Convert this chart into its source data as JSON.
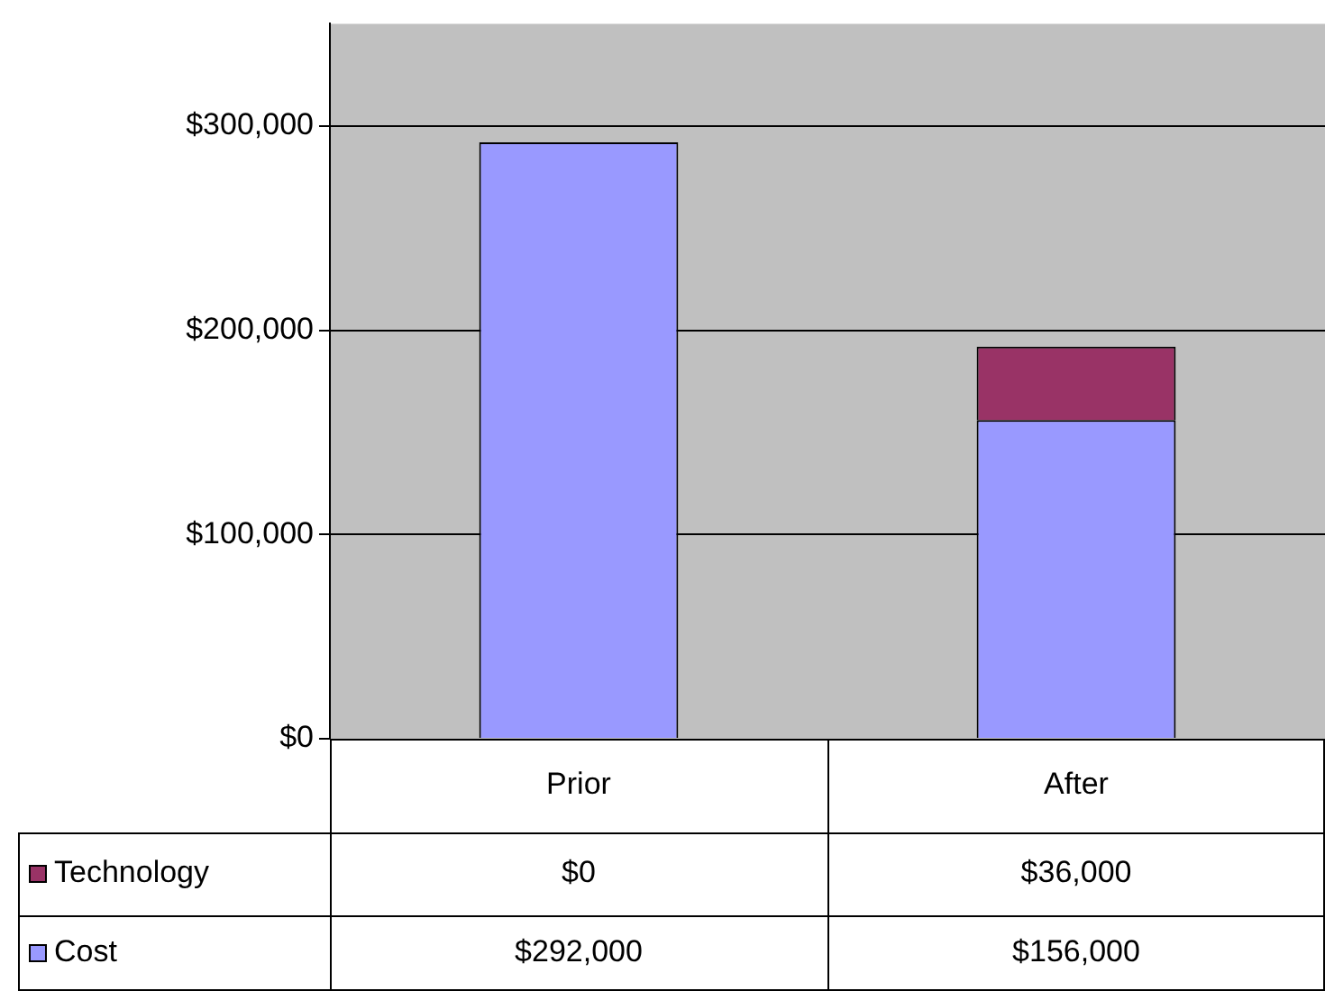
{
  "chart_data": {
    "type": "bar",
    "stacked": true,
    "categories": [
      "Prior",
      "After"
    ],
    "series": [
      {
        "name": "Cost",
        "color": "#9999ff",
        "values": [
          292000,
          156000
        ],
        "value_labels": [
          "$292,000",
          "$156,000"
        ]
      },
      {
        "name": "Technology",
        "color": "#993366",
        "values": [
          0,
          36000
        ],
        "value_labels": [
          "$0",
          "$36,000"
        ]
      }
    ],
    "ylim": [
      0,
      350000
    ],
    "yticks": [
      {
        "value": 0,
        "label": "$0"
      },
      {
        "value": 100000,
        "label": "$100,000"
      },
      {
        "value": 200000,
        "label": "$200,000"
      },
      {
        "value": 300000,
        "label": "$300,000"
      }
    ],
    "grid": "y",
    "legend": "bottom"
  }
}
